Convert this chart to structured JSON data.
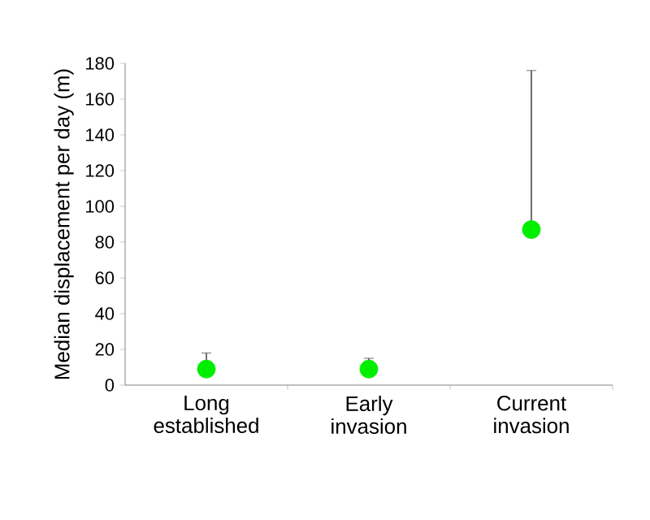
{
  "chart_data": {
    "type": "scatter",
    "ylabel": "Median displacement per day (m)",
    "categories": [
      "Long established",
      "Early invasion",
      "Current invasion"
    ],
    "values": [
      9,
      9,
      87
    ],
    "errors": [
      [
        9,
        18
      ],
      [
        9,
        15
      ],
      [
        87,
        176
      ]
    ],
    "color": "#00ee00",
    "marker": "circle",
    "ylim": [
      0,
      180
    ],
    "yticks": [
      0,
      20,
      40,
      60,
      80,
      100,
      120,
      140,
      160,
      180
    ],
    "grid": false
  }
}
